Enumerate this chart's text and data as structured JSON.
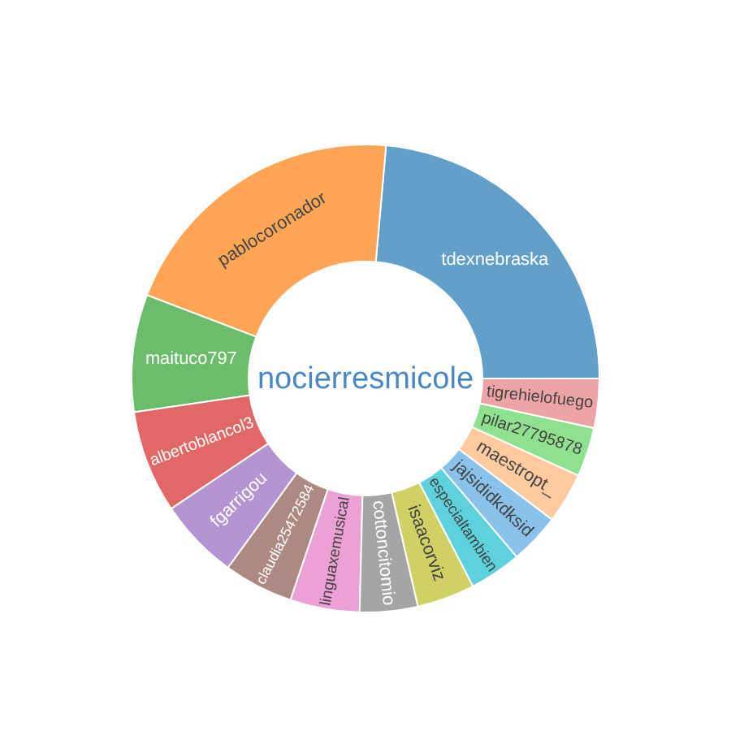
{
  "chart_data": {
    "type": "donut",
    "title": "nocierresmicole",
    "categories": [
      "tdexnebraska",
      "pablocoronador",
      "maituco797",
      "albertoblancol3",
      "fgarrigou",
      "claudia25472584",
      "linguaxemusical",
      "cottoncitomio",
      "isaacorviz",
      "especialtambien",
      "jajsididkdksid",
      "maestropt_",
      "pilar27795878",
      "tigrehielofuego"
    ],
    "values": [
      23.6,
      20.6,
      8.1,
      7.1,
      5.6,
      4.8,
      4.8,
      4.0,
      4.0,
      3.6,
      3.5,
      3.5,
      3.4,
      3.4
    ],
    "colors": [
      "#62a0ca",
      "#ffa556",
      "#6bbc6b",
      "#e26868",
      "#b495d1",
      "#ae8981",
      "#eca0d4",
      "#a5a5a5",
      "#d0d164",
      "#5dd2dd",
      "#89c2eb",
      "#ffcb9e",
      "#8fe08f",
      "#eea4a4"
    ]
  }
}
